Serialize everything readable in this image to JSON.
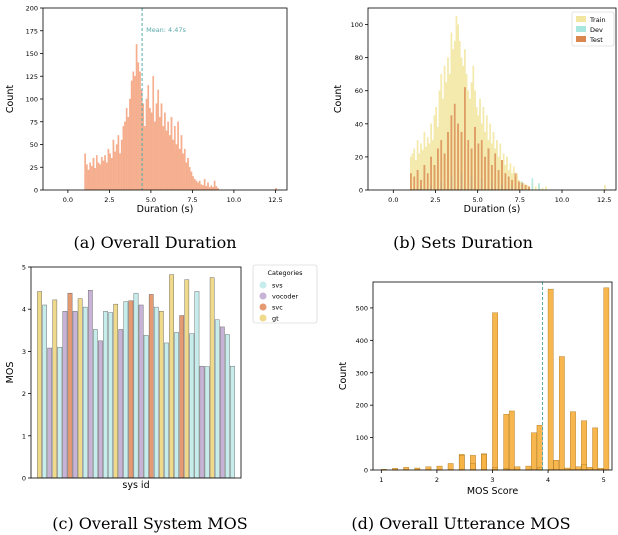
{
  "captions": {
    "a": "(a) Overall Duration",
    "b": "(b) Sets Duration",
    "c": "(c) Overall System MOS",
    "d": "(d) Overall Utterance MOS"
  },
  "chart_data": [
    {
      "id": "a",
      "type": "bar",
      "xlabel": "Duration (s)",
      "ylabel": "Count",
      "xlim": [
        -1.5,
        13.2
      ],
      "ylim": [
        0,
        200
      ],
      "xticks": [
        0.0,
        2.5,
        5.0,
        7.5,
        10.0,
        12.5
      ],
      "yticks": [
        0,
        25,
        50,
        75,
        100,
        125,
        150,
        175,
        200
      ],
      "bin_width": 0.1,
      "color": "#f4a582",
      "grid": false,
      "mean_line": {
        "x": 4.47,
        "label": "Mean: 4.47s",
        "color": "#5aa9a9"
      },
      "bins": {
        "x": [
          1.0,
          1.1,
          1.2,
          1.3,
          1.4,
          1.5,
          1.6,
          1.7,
          1.8,
          1.9,
          2.0,
          2.1,
          2.2,
          2.3,
          2.4,
          2.5,
          2.6,
          2.7,
          2.8,
          2.9,
          3.0,
          3.1,
          3.2,
          3.3,
          3.4,
          3.5,
          3.6,
          3.7,
          3.8,
          3.9,
          4.0,
          4.1,
          4.2,
          4.3,
          4.4,
          4.5,
          4.6,
          4.7,
          4.8,
          4.9,
          5.0,
          5.1,
          5.2,
          5.3,
          5.4,
          5.5,
          5.6,
          5.7,
          5.8,
          5.9,
          6.0,
          6.1,
          6.2,
          6.3,
          6.4,
          6.5,
          6.6,
          6.7,
          6.8,
          6.9,
          7.0,
          7.1,
          7.2,
          7.3,
          7.4,
          7.5,
          7.6,
          7.7,
          7.8,
          7.9,
          8.0,
          8.1,
          8.2,
          8.3,
          8.4,
          8.5,
          8.6,
          8.7,
          8.8,
          8.9,
          9.0,
          12.5
        ],
        "values": [
          40,
          28,
          22,
          30,
          26,
          35,
          24,
          38,
          30,
          28,
          36,
          32,
          38,
          30,
          45,
          40,
          35,
          55,
          42,
          50,
          60,
          40,
          55,
          70,
          75,
          90,
          80,
          100,
          120,
          130,
          125,
          160,
          140,
          130,
          110,
          95,
          70,
          100,
          115,
          90,
          85,
          125,
          75,
          95,
          110,
          80,
          95,
          70,
          85,
          65,
          75,
          60,
          80,
          55,
          70,
          50,
          75,
          45,
          60,
          40,
          45,
          30,
          35,
          25,
          20,
          15,
          12,
          10,
          8,
          10,
          6,
          5,
          12,
          4,
          8,
          3,
          5,
          3,
          10,
          4,
          2,
          2
        ]
      }
    },
    {
      "id": "b",
      "type": "bar",
      "xlabel": "Duration (s)",
      "ylabel": "Count",
      "xlim": [
        -1.5,
        13.2
      ],
      "ylim": [
        0,
        110
      ],
      "xticks": [
        0.0,
        2.5,
        5.0,
        7.5,
        10.0,
        12.5
      ],
      "yticks": [
        0,
        20,
        40,
        60,
        80,
        100
      ],
      "bin_width": 0.1,
      "grid": false,
      "legend": "top-right",
      "series": [
        {
          "name": "Train",
          "color": "#f2e6a0",
          "x": [
            1.0,
            1.1,
            1.2,
            1.3,
            1.4,
            1.5,
            1.6,
            1.7,
            1.8,
            1.9,
            2.0,
            2.1,
            2.2,
            2.3,
            2.4,
            2.5,
            2.6,
            2.7,
            2.8,
            2.9,
            3.0,
            3.1,
            3.2,
            3.3,
            3.4,
            3.5,
            3.6,
            3.7,
            3.8,
            3.9,
            4.0,
            4.1,
            4.2,
            4.3,
            4.4,
            4.5,
            4.6,
            4.7,
            4.8,
            4.9,
            5.0,
            5.1,
            5.2,
            5.3,
            5.4,
            5.5,
            5.6,
            5.7,
            5.8,
            5.9,
            6.0,
            6.1,
            6.2,
            6.3,
            6.4,
            6.5,
            6.6,
            6.7,
            6.8,
            6.9,
            7.0,
            7.1,
            7.2,
            7.3,
            7.4,
            7.5,
            7.6,
            7.7,
            7.8,
            7.9,
            8.0,
            8.2,
            8.4,
            8.6,
            8.8,
            9.0,
            12.5
          ],
          "values": [
            20,
            22,
            25,
            18,
            30,
            22,
            28,
            24,
            35,
            26,
            32,
            28,
            40,
            30,
            45,
            50,
            38,
            60,
            70,
            55,
            75,
            65,
            80,
            70,
            95,
            85,
            90,
            105,
            100,
            90,
            80,
            75,
            85,
            70,
            60,
            55,
            65,
            75,
            60,
            50,
            45,
            55,
            40,
            50,
            35,
            45,
            30,
            40,
            28,
            35,
            25,
            30,
            20,
            28,
            18,
            22,
            15,
            20,
            12,
            16,
            10,
            14,
            8,
            10,
            6,
            5,
            5,
            4,
            3,
            3,
            2,
            4,
            2,
            3,
            1,
            2,
            3
          ]
        },
        {
          "name": "Dev",
          "color": "#a8e6e0",
          "x": [
            1.6,
            2.2,
            2.8,
            3.4,
            4.0,
            4.6,
            5.2,
            5.8,
            6.4,
            7.0,
            7.6,
            8.2,
            8.6
          ],
          "values": [
            2,
            3,
            5,
            8,
            10,
            9,
            7,
            5,
            4,
            3,
            5,
            7,
            4
          ]
        },
        {
          "name": "Test",
          "color": "#d9864f",
          "x": [
            1.0,
            1.2,
            1.4,
            1.6,
            1.8,
            2.0,
            2.2,
            2.4,
            2.6,
            2.8,
            3.0,
            3.2,
            3.4,
            3.6,
            3.8,
            4.0,
            4.2,
            4.4,
            4.6,
            4.8,
            5.0,
            5.2,
            5.4,
            5.6,
            5.8,
            6.0,
            6.2,
            6.4,
            6.6,
            6.8,
            7.0,
            7.2,
            7.4,
            7.6,
            7.8,
            8.0
          ],
          "values": [
            10,
            8,
            12,
            6,
            15,
            10,
            20,
            15,
            25,
            30,
            22,
            35,
            45,
            52,
            40,
            35,
            62,
            30,
            25,
            38,
            28,
            30,
            20,
            25,
            15,
            22,
            12,
            18,
            10,
            8,
            6,
            10,
            5,
            4,
            3,
            2
          ]
        }
      ]
    },
    {
      "id": "c",
      "type": "bar",
      "xlabel": "sys id",
      "ylabel": "MOS",
      "ylim": [
        0,
        5.0
      ],
      "yticks": [
        0,
        1,
        2,
        3,
        4,
        5
      ],
      "grid": false,
      "legend": "right-outside",
      "legend_title": "Categories",
      "categories": [
        {
          "name": "svs",
          "color": "#c7ecec"
        },
        {
          "name": "vocoder",
          "color": "#c7b3d6"
        },
        {
          "name": "svc",
          "color": "#e69a72"
        },
        {
          "name": "gt",
          "color": "#efd98a"
        }
      ],
      "systems": [
        {
          "cat": 3,
          "value": 4.42
        },
        {
          "cat": 0,
          "value": 4.1
        },
        {
          "cat": 1,
          "value": 3.08
        },
        {
          "cat": 3,
          "value": 4.22
        },
        {
          "cat": 0,
          "value": 3.1
        },
        {
          "cat": 1,
          "value": 3.95
        },
        {
          "cat": 2,
          "value": 4.38
        },
        {
          "cat": 1,
          "value": 3.95
        },
        {
          "cat": 3,
          "value": 4.25
        },
        {
          "cat": 0,
          "value": 4.05
        },
        {
          "cat": 1,
          "value": 4.45
        },
        {
          "cat": 0,
          "value": 3.52
        },
        {
          "cat": 1,
          "value": 3.25
        },
        {
          "cat": 0,
          "value": 3.95
        },
        {
          "cat": 0,
          "value": 3.92
        },
        {
          "cat": 3,
          "value": 4.12
        },
        {
          "cat": 1,
          "value": 3.52
        },
        {
          "cat": 0,
          "value": 4.18
        },
        {
          "cat": 2,
          "value": 4.2
        },
        {
          "cat": 0,
          "value": 4.38
        },
        {
          "cat": 1,
          "value": 4.1
        },
        {
          "cat": 0,
          "value": 3.38
        },
        {
          "cat": 2,
          "value": 4.35
        },
        {
          "cat": 0,
          "value": 4.05
        },
        {
          "cat": 3,
          "value": 3.95
        },
        {
          "cat": 0,
          "value": 3.2
        },
        {
          "cat": 3,
          "value": 4.82
        },
        {
          "cat": 0,
          "value": 3.45
        },
        {
          "cat": 2,
          "value": 3.85
        },
        {
          "cat": 3,
          "value": 4.7
        },
        {
          "cat": 0,
          "value": 3.42
        },
        {
          "cat": 0,
          "value": 4.42
        },
        {
          "cat": 1,
          "value": 2.65
        },
        {
          "cat": 0,
          "value": 2.64
        },
        {
          "cat": 3,
          "value": 4.75
        },
        {
          "cat": 0,
          "value": 3.75
        },
        {
          "cat": 1,
          "value": 3.58
        },
        {
          "cat": 0,
          "value": 3.4
        },
        {
          "cat": 0,
          "value": 2.65
        }
      ]
    },
    {
      "id": "d",
      "type": "bar",
      "xlabel": "MOS Score",
      "ylabel": "Count",
      "xlim": [
        0.85,
        5.15
      ],
      "ylim": [
        0,
        580
      ],
      "xticks": [
        1,
        2,
        3,
        4,
        5
      ],
      "yticks": [
        0,
        100,
        200,
        300,
        400,
        500
      ],
      "bin_width": 0.1,
      "color": "#f7b345",
      "grid": false,
      "mean_line": {
        "x": 3.9,
        "color": "#5aa9a9"
      },
      "bins": {
        "x": [
          1.0,
          1.2,
          1.4,
          1.6,
          1.8,
          2.0,
          2.2,
          2.4,
          2.6,
          2.8,
          3.0,
          3.2,
          3.4,
          3.6,
          3.8,
          3.2,
          3.3,
          2.4,
          2.6,
          2.8,
          3.7,
          3.8,
          4.0,
          4.2,
          4.4,
          4.6,
          4.8,
          5.0,
          3.0,
          4.6,
          4.1,
          4.3,
          4.5,
          4.7,
          4.9
        ],
        "values": [
          2,
          5,
          8,
          6,
          10,
          12,
          20,
          48,
          45,
          50,
          485,
          5,
          10,
          12,
          8,
          172,
          182,
          45,
          20,
          48,
          115,
          138,
          558,
          350,
          180,
          152,
          130,
          562,
          8,
          18,
          30,
          6,
          10,
          8,
          5
        ]
      }
    }
  ]
}
